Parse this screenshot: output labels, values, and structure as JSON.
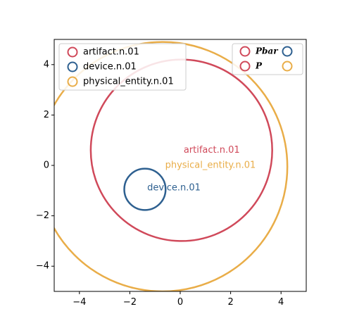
{
  "chart_data": {
    "type": "scatter",
    "title": "",
    "xlabel": "",
    "ylabel": "",
    "xlim": [
      -5,
      5
    ],
    "ylim": [
      -5,
      5
    ],
    "xticks": [
      -4,
      -2,
      0,
      2,
      4
    ],
    "yticks": [
      -4,
      -2,
      0,
      2,
      4
    ],
    "grid": false,
    "legend_placement": "upper-left",
    "circles": [
      {
        "name": "artifact.n.01",
        "cx": 0.05,
        "cy": 0.6,
        "r": 3.6,
        "color": "#d0495a",
        "label": "artifact.n.01",
        "label_x": 1.25,
        "label_y": 0.6
      },
      {
        "name": "device.n.01",
        "cx": -1.4,
        "cy": -0.95,
        "r": 0.82,
        "color": "#2e6090",
        "label": "device.n.01",
        "label_x": -0.25,
        "label_y": -0.9
      },
      {
        "name": "physical_entity.n.01",
        "cx": -0.7,
        "cy": -0.05,
        "r": 4.95,
        "color": "#e9ad48",
        "label": "physical_entity.n.01",
        "label_x": 1.2,
        "label_y": 0.0
      }
    ],
    "legend": [
      {
        "label": "artifact.n.01",
        "color": "#d0495a"
      },
      {
        "label": "device.n.01",
        "color": "#2e6090"
      },
      {
        "label": "physical_entity.n.01",
        "color": "#e9ad48"
      }
    ],
    "legend2": {
      "placement": "upper-right",
      "rows": [
        {
          "label": "Pbar",
          "color_left": "#d0495a",
          "color_right": "#2e6090"
        },
        {
          "label": "P",
          "color_left": "#d0495a",
          "color_right": "#e9ad48"
        }
      ]
    }
  }
}
